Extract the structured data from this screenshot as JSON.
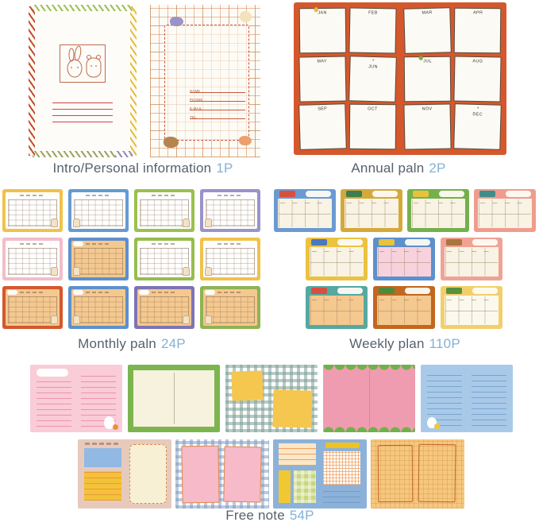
{
  "captions": {
    "label_color": "#57616c",
    "count_color": "#84b1d4",
    "intro": {
      "label": "Intro/Personal information",
      "count": "1P"
    },
    "annual": {
      "label": "Annual paln",
      "count": "2P"
    },
    "monthly": {
      "label": "Monthly paln",
      "count": "24P"
    },
    "weekly": {
      "label": "Weekly plan",
      "count": "110P"
    },
    "freenote": {
      "label": "Free note",
      "count": "54P"
    }
  },
  "intro": {
    "cover": {
      "border_top": "#9cbf56",
      "border_left": "#c44a28",
      "border_right": "#e4bd3a",
      "border_bottom": "#9ba05e",
      "border_bottom_accent": "#8b87c0",
      "line_color": "#d04545",
      "sketch_color": "#c06a4a"
    },
    "personal": {
      "grid_color": "rgba(214,120,70,0.5)",
      "grid_accent": "rgba(130,170,90,0.4)",
      "box_border": "#c8543c",
      "fields": [
        "NAME",
        "PHONE",
        "E-MAIL",
        "TEL"
      ],
      "blobs": [
        "#9a93c8",
        "#f2e3bd",
        "#b5854f",
        "#eda06e"
      ]
    }
  },
  "annual": {
    "bg": "#d4582c",
    "card_bg": "#fcfaf4",
    "months": [
      "JAN",
      "FEB",
      "MAR",
      "APR",
      "MAY",
      "JUN",
      "JUL",
      "AUG",
      "SEP",
      "OCT",
      "NOV",
      "DEC"
    ],
    "pins": {
      "JAN": "#f2b52e",
      "JUL": "#74ad3f"
    },
    "starred": [
      "JUN",
      "DEC"
    ]
  },
  "monthly": {
    "pages": [
      {
        "border": "#f0c24a",
        "interior": "#ffffff"
      },
      {
        "border": "#659bd3",
        "interior": "#ffffff"
      },
      {
        "border": "#9cc050",
        "interior": "#ffffff"
      },
      {
        "border": "#9a93cb",
        "interior": "#ffffff"
      },
      {
        "border": "#f2bdc9",
        "interior": "#ffffff"
      },
      {
        "border": "#5d90cc",
        "interior": "#f5c88f"
      },
      {
        "border": "#96bd4e",
        "interior": "#ffffff"
      },
      {
        "border": "#f0c24a",
        "interior": "#ffffff"
      },
      {
        "border": "#d4582c",
        "interior": "#f5c88f"
      },
      {
        "border": "#5d90cc",
        "interior": "#f5c88f"
      },
      {
        "border": "#7d74b5",
        "interior": "#f5c88f"
      },
      {
        "border": "#8fb353",
        "interior": "#f5c88f"
      }
    ]
  },
  "weekly": {
    "rows": [
      [
        {
          "border": "#6b9ad2",
          "tab": "#d94f3d",
          "interior": "#f8f3e4"
        },
        {
          "border": "#d4a93a",
          "tab": "#3f7d4f",
          "interior": "#f8f3e4"
        },
        {
          "border": "#74b04c",
          "tab": "#e8c23c",
          "interior": "#f8f3e4"
        },
        {
          "border": "#ef9c8e",
          "tab": "#3e8d88",
          "interior": "#f8f3e4"
        }
      ],
      [
        {
          "border": "#ecc23f",
          "tab": "#4a77c2",
          "interior": "#f8f3e4"
        },
        {
          "border": "#5d90cc",
          "tab": "#e8c23c",
          "interior": "#f7d2dd"
        },
        {
          "border": "#f0a294",
          "tab": "#a8763e",
          "interior": "#f8f3e4"
        }
      ],
      [
        {
          "border": "#55a9a0",
          "tab": "#d94f3d",
          "interior": "#f5c88f"
        },
        {
          "border": "#c2671f",
          "tab": "#4e8a3e",
          "interior": "#f5c88f"
        },
        {
          "border": "#f2cf6b",
          "tab": "#56913f",
          "interior": "#fbf8ee"
        }
      ]
    ]
  },
  "freenote": {
    "row1": [
      {
        "style": "pink-lined",
        "bg": "#f9ccd7",
        "line": "#ec93ae",
        "flower": "#e8913f"
      },
      {
        "style": "green-book",
        "border": "#7cb450",
        "page": "#f6f2de"
      },
      {
        "style": "gingham-yellow",
        "check": "rgba(124,158,150,0.55)",
        "square": "#f6c74e"
      },
      {
        "style": "pink-scallop",
        "bg": "#f09cb0",
        "scallop": "#6fb14a"
      },
      {
        "style": "blue-lined",
        "bg": "#a9c9e9",
        "line": "#7ba6cf",
        "dot": "#f2c832"
      }
    ],
    "row2": [
      {
        "style": "tan-blocks",
        "bg": "#e7cabc",
        "blue": "#91b9e3",
        "yellow": "#f4c238",
        "yellowLine": "#e89a3c",
        "cream": "#f7f0d4",
        "dash": "#d78b4e"
      },
      {
        "style": "gingham-pink",
        "check": "rgba(122,150,190,0.5)",
        "rect": "#f6bac8",
        "rectBorder": "#e08a4a"
      },
      {
        "style": "blue-blocks",
        "bg": "#8cb2d9",
        "cream": "#fbe7c8",
        "stripe": "#ef9f5f",
        "yellow": "#f2c832",
        "green": "#c8d67e",
        "bar": "#f0c21e",
        "checkLine": "rgba(239,159,95,0.75)",
        "line": "#6f9cc8"
      },
      {
        "style": "orange-book",
        "bg": "#f6c77e",
        "grid": "rgba(214,150,80,0.4)",
        "outline": "#bf6426"
      }
    ]
  }
}
